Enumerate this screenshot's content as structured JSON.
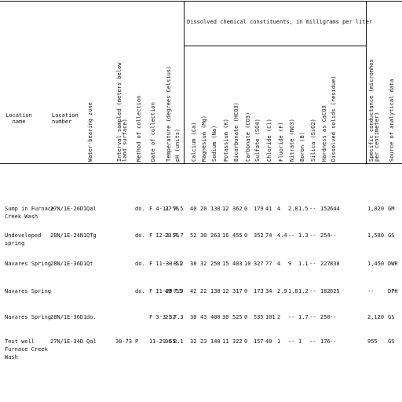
{
  "header": {
    "group_title": "Dissolved chemical constituents, in milligrams per liter",
    "location_name": "Location name",
    "location_number": "Location number",
    "rotated": [
      "Water-bearing zone",
      "Interval sampled (meters below land surface)",
      "Method of collection",
      "Date of collection",
      "Temperature (degrees Celsius)",
      "pH (units)",
      "Calcium (Ca)",
      "Magnesium (Mg)",
      "Sodium (Na)",
      "Potassium (K)",
      "Bicarbonate (HCO3)",
      "Carbonate (CO3)",
      "Sulfate (SO4)",
      "Chloride (Cl)",
      "Fluoride (F)",
      "Nitrate (NO3)",
      "Boron (B)",
      "Silica (SiO2)",
      "Hardness as CaCO3",
      "Dissolved solids (residue)",
      "Specific conductance (micromhos per centimeter)",
      "Source of analytical data"
    ]
  },
  "rows": [
    {
      "name": [
        "Sump in Furnace",
        "Creek Wash"
      ],
      "number": "27N/1E-26D1",
      "cells": [
        "Qal",
        "",
        "do.",
        "F 4-11-56",
        "27",
        "7.5",
        "40",
        "20",
        "130",
        "12",
        "362",
        "0",
        "179",
        "41",
        "4",
        "2.8",
        "1.5",
        "--",
        "152",
        "644",
        "1,020",
        "GM"
      ]
    },
    {
      "name": [
        "Undeveloped",
        "spring"
      ],
      "number": "28N/1E-24N1",
      "cells": [
        "QTg",
        "",
        "do.",
        "F 12-3-56",
        "23",
        "7.7",
        "52",
        "30",
        "263",
        "16",
        "455",
        "0",
        "352",
        "74",
        "4.4",
        "--",
        "1.3",
        "--",
        "254",
        "--",
        "1,580",
        "GS"
      ]
    },
    {
      "name": [
        "Navares Spring"
      ],
      "number": "28N/1E-36D1",
      "cells": [
        "Qt",
        "",
        "do.",
        "F 11-30-51",
        "--",
        "8.2",
        "38",
        "32",
        "250",
        "15",
        "403",
        "10",
        "327",
        "77",
        "4",
        "9",
        "1.1",
        "--",
        "227",
        "838",
        "1,450",
        "DWR"
      ]
    },
    {
      "name": [
        "Navares Spring"
      ],
      "number": "",
      "cells": [
        "",
        "",
        "do.",
        "F 11-29-55",
        "40",
        "7.9",
        "42",
        "22",
        "138",
        "12",
        "317",
        "0",
        "173",
        "34",
        "2.9",
        "1.8",
        "1.2",
        "--",
        "182",
        "625",
        "--",
        "DPH"
      ]
    },
    {
      "name": [
        "Navares Spring"
      ],
      "number": "28N/1E-36D1",
      "cells": [
        "do.",
        "",
        "",
        "F 3-3-52",
        "21",
        "7.3",
        "30",
        "43",
        "400",
        "30",
        "525",
        "0",
        "535",
        "101",
        "2",
        "--",
        "1.7",
        "--",
        "250",
        "--",
        "2,120",
        "GS"
      ]
    },
    {
      "name": [
        "Test well",
        "Furnace Creek",
        "Wash"
      ],
      "number": "27N/1E-34D",
      "cells": [
        "Qal",
        "30-73",
        "P",
        "11-29-55",
        "36",
        "8.1",
        "32",
        "23",
        "140",
        "11",
        "322",
        "0",
        "157",
        "40",
        "1",
        "--",
        "1",
        "--",
        "176",
        "--",
        "955",
        "GS"
      ]
    }
  ]
}
